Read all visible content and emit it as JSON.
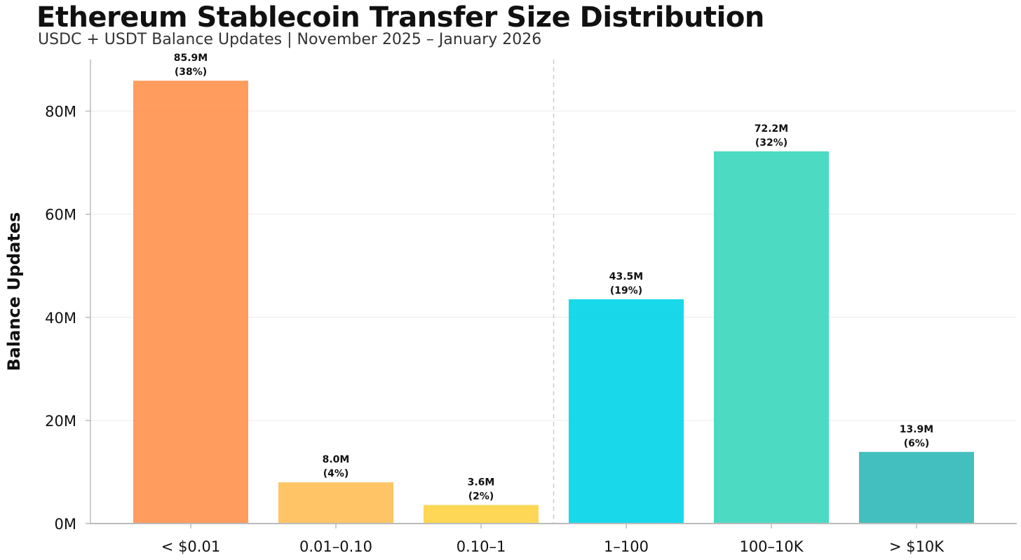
{
  "chart_data": {
    "type": "bar",
    "title": "Ethereum Stablecoin Transfer Size Distribution",
    "subtitle": "USDC + USDT Balance Updates | November 2025 – January 2026",
    "ylabel": "Balance Updates",
    "xlabel": "",
    "ylim": [
      0,
      90
    ],
    "yticks": [
      0,
      20,
      40,
      60,
      80
    ],
    "ytick_labels": [
      "0M",
      "20M",
      "40M",
      "60M",
      "80M"
    ],
    "grid": true,
    "categories": [
      "< $0.01",
      "0.01–0.10",
      "0.10–1",
      "1–100",
      "100–10K",
      "> $10K"
    ],
    "values": [
      85.9,
      8.0,
      3.6,
      43.5,
      72.2,
      13.9
    ],
    "value_labels": [
      "85.9M",
      "8.0M",
      "3.6M",
      "43.5M",
      "72.2M",
      "13.9M"
    ],
    "percent_labels": [
      "(38%)",
      "(4%)",
      "(2%)",
      "(19%)",
      "(32%)",
      "(6%)"
    ],
    "colors": [
      "#FF914D",
      "#FEBE55",
      "#FDD342",
      "#00D4E8",
      "#3AD6BD",
      "#30B8B8"
    ],
    "divider_after_category": 2
  }
}
